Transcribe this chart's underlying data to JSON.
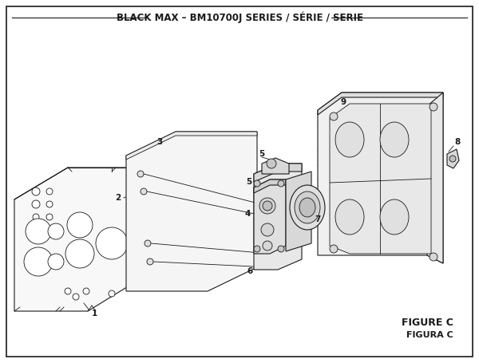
{
  "title": "BLACK MAX – BM10700J SERIES / SÉRIE / SERIE",
  "figure_label": "FIGURE C",
  "figura_label": "FIGURA C",
  "background_color": "#ffffff",
  "border_color": "#222222",
  "line_color": "#1a1a1a",
  "title_fontsize": 8.5,
  "label_fontsize": 7.5,
  "figure_label_fontsize": 9,
  "fig_width": 6.0,
  "fig_height": 4.55,
  "dpi": 100
}
